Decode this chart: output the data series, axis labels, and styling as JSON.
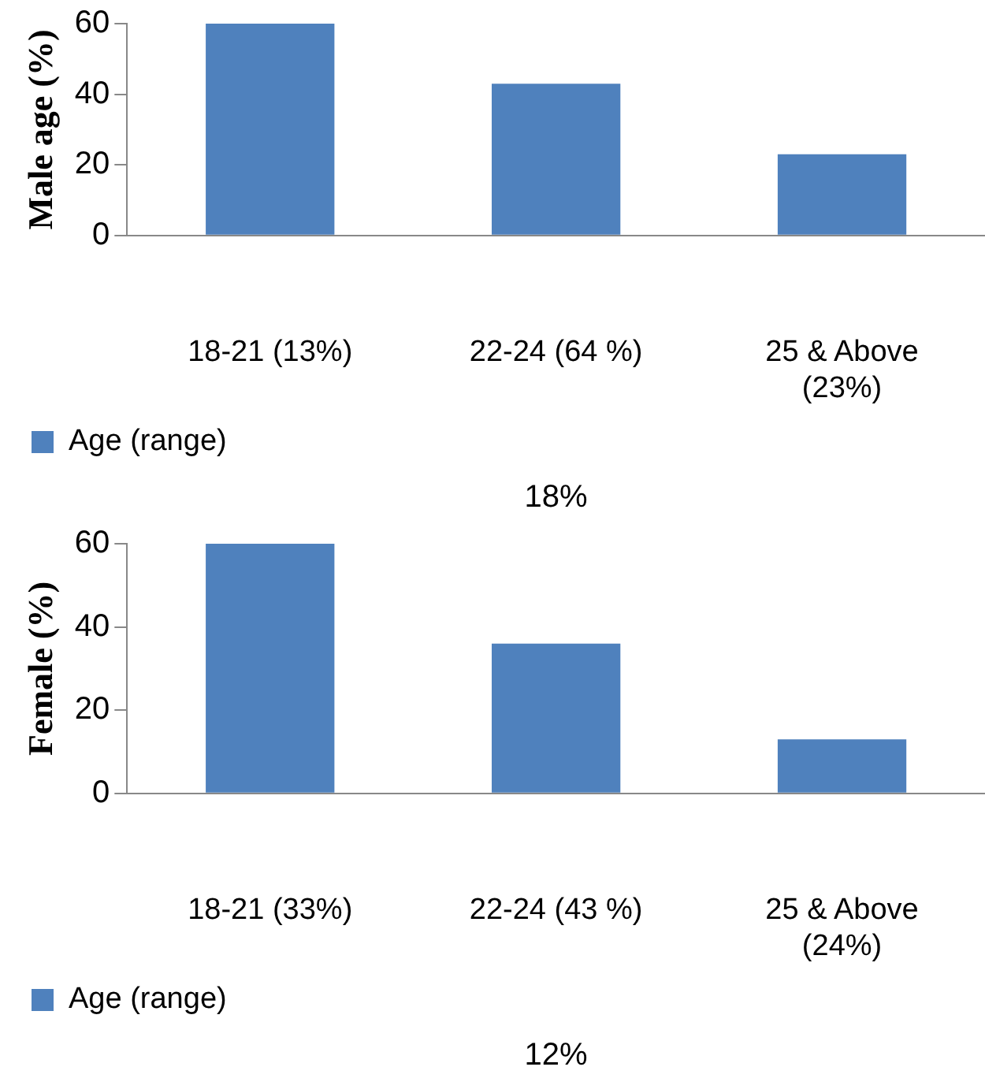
{
  "chart_data": [
    {
      "type": "bar",
      "ylabel": "Male age (%)",
      "categories": [
        "18-21 (13%)",
        "22-24 (64 %)",
        "25 & Above (23%)"
      ],
      "series": [
        {
          "name": "Age (range)",
          "color": "#4f81bd",
          "values": [
            60,
            43,
            23
          ]
        }
      ],
      "ylim": [
        0,
        60
      ],
      "yticks": [
        0,
        20,
        40,
        60
      ],
      "grid": false,
      "legend": "bottom left",
      "annotations": [
        "18%"
      ]
    },
    {
      "type": "bar",
      "ylabel": "Female (%)",
      "categories": [
        "18-21 (33%)",
        "22-24 (43 %)",
        "25 & Above (24%)"
      ],
      "series": [
        {
          "name": "Age (range)",
          "color": "#4f81bd",
          "values": [
            60,
            36,
            13
          ]
        }
      ],
      "ylim": [
        0,
        60
      ],
      "yticks": [
        0,
        20,
        40,
        60
      ],
      "grid": false,
      "legend": "bottom left",
      "annotations": [
        "12%"
      ]
    }
  ]
}
